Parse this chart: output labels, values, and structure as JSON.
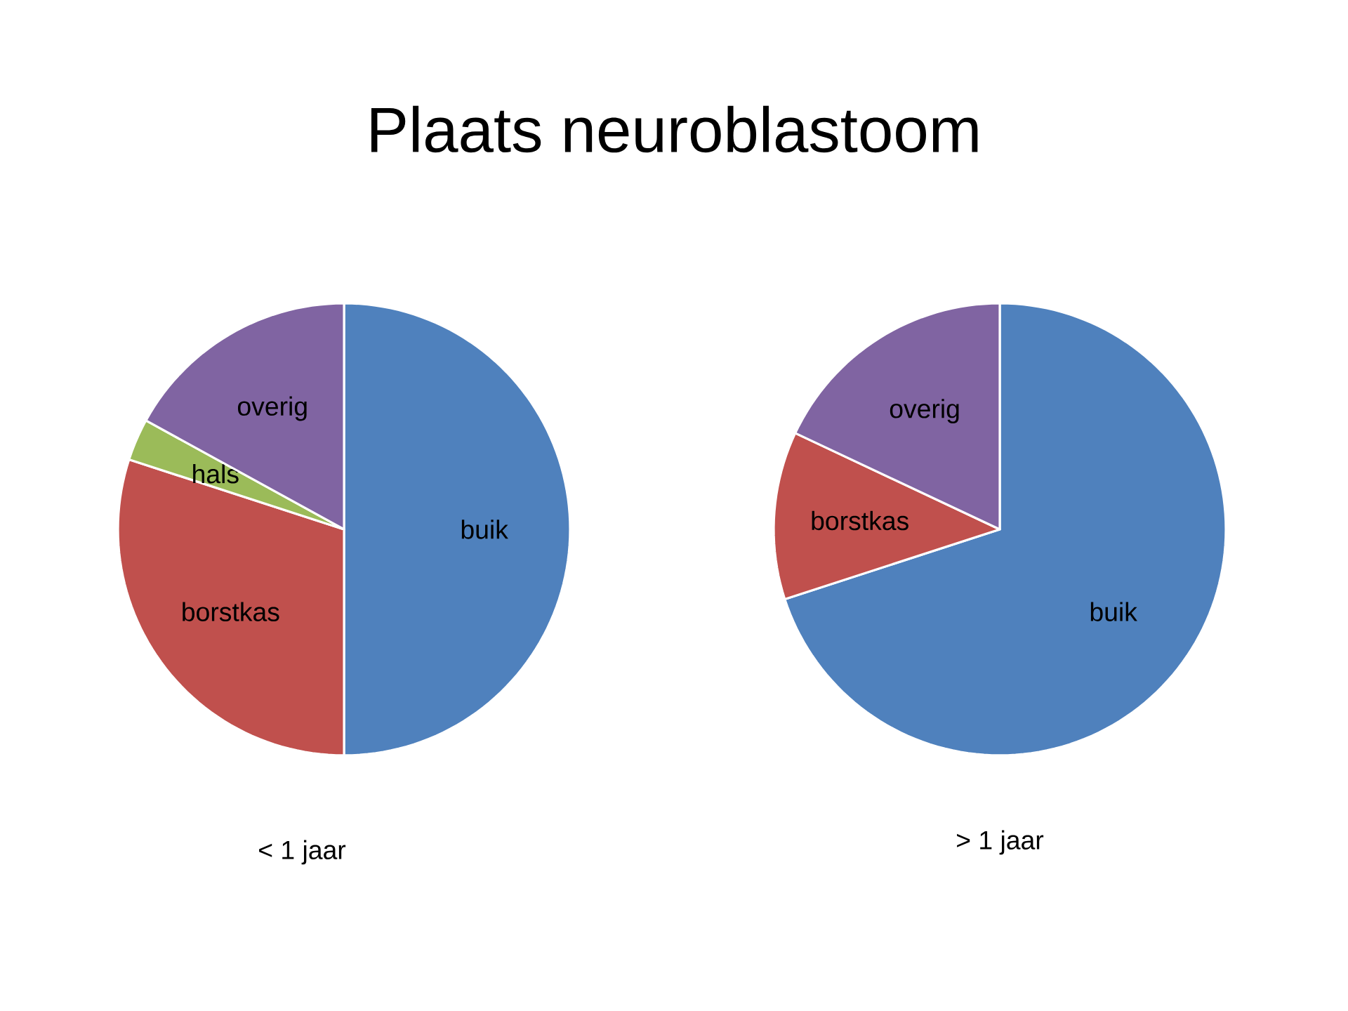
{
  "chart_data": [
    {
      "type": "pie",
      "title": "Plaats neuroblastoom",
      "categories": [
        "buik",
        "borstkas",
        "hals",
        "overig"
      ],
      "values": [
        50,
        30,
        3,
        17
      ],
      "colors": [
        "#4f81bd",
        "#c0504d",
        "#9bbb59",
        "#8064a2"
      ],
      "annotations": [
        "< 1 jaar"
      ]
    },
    {
      "type": "pie",
      "categories": [
        "buik",
        "borstkas",
        "overig"
      ],
      "values": [
        70,
        12,
        18
      ],
      "colors": [
        "#4f81bd",
        "#c0504d",
        "#8064a2"
      ],
      "annotations": [
        "> 1 jaar"
      ]
    }
  ]
}
